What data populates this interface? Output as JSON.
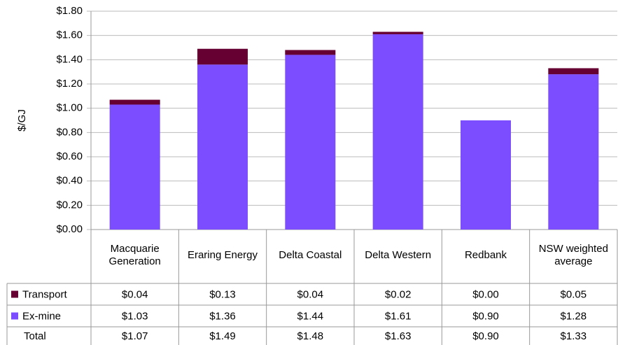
{
  "chart_data": {
    "type": "stacked-bar",
    "y_label": "$/GJ",
    "categories": [
      "Macquarie Generation",
      "Eraring Energy",
      "Delta Coastal",
      "Delta Western",
      "Redbank",
      "NSW weighted average"
    ],
    "series": [
      {
        "name": "Transport",
        "color": "#660033",
        "values": [
          0.04,
          0.13,
          0.04,
          0.02,
          0.0,
          0.05
        ],
        "value_labels": [
          "$0.04",
          "$0.13",
          "$0.04",
          "$0.02",
          "$0.00",
          "$0.05"
        ]
      },
      {
        "name": "Ex-mine",
        "color": "#7b4dff",
        "values": [
          1.03,
          1.36,
          1.44,
          1.61,
          0.9,
          1.28
        ],
        "value_labels": [
          "$1.03",
          "$1.36",
          "$1.44",
          "$1.61",
          "$0.90",
          "$1.28"
        ]
      }
    ],
    "total": {
      "name": "Total",
      "values": [
        1.07,
        1.49,
        1.48,
        1.63,
        0.9,
        1.33
      ],
      "value_labels": [
        "$1.07",
        "$1.49",
        "$1.48",
        "$1.63",
        "$0.90",
        "$1.33"
      ]
    },
    "ylim": [
      0,
      1.8
    ],
    "yticks": [
      {
        "value": 0,
        "label": "$0.00"
      },
      {
        "value": 0.2,
        "label": "$0.20"
      },
      {
        "value": 0.4,
        "label": "$0.40"
      },
      {
        "value": 0.6,
        "label": "$0.60"
      },
      {
        "value": 0.8,
        "label": "$0.80"
      },
      {
        "value": 1.0,
        "label": "$1.00"
      },
      {
        "value": 1.2,
        "label": "$1.20"
      },
      {
        "value": 1.4,
        "label": "$1.40"
      },
      {
        "value": 1.6,
        "label": "$1.60"
      },
      {
        "value": 1.8,
        "label": "$1.80"
      }
    ],
    "grid": true
  }
}
